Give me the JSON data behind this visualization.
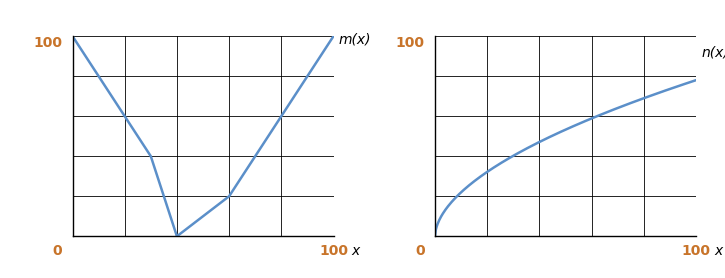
{
  "m_x": [
    0,
    30,
    40,
    60,
    100
  ],
  "m_y": [
    100,
    40,
    0,
    20,
    100
  ],
  "line_color": "#5b8fc9",
  "line_width": 1.8,
  "text_color": "#c8742a",
  "xlim": [
    0,
    100
  ],
  "ylim": [
    0,
    100
  ],
  "label_m": "m(x)",
  "label_n": "n(x)",
  "xlabel": "x",
  "tick_label_0": "0",
  "tick_label_100": "100",
  "ytick_label_100": "100",
  "figsize": [
    7.25,
    2.78
  ],
  "dpi": 100,
  "n_power": 0.55,
  "n_scale": 78
}
